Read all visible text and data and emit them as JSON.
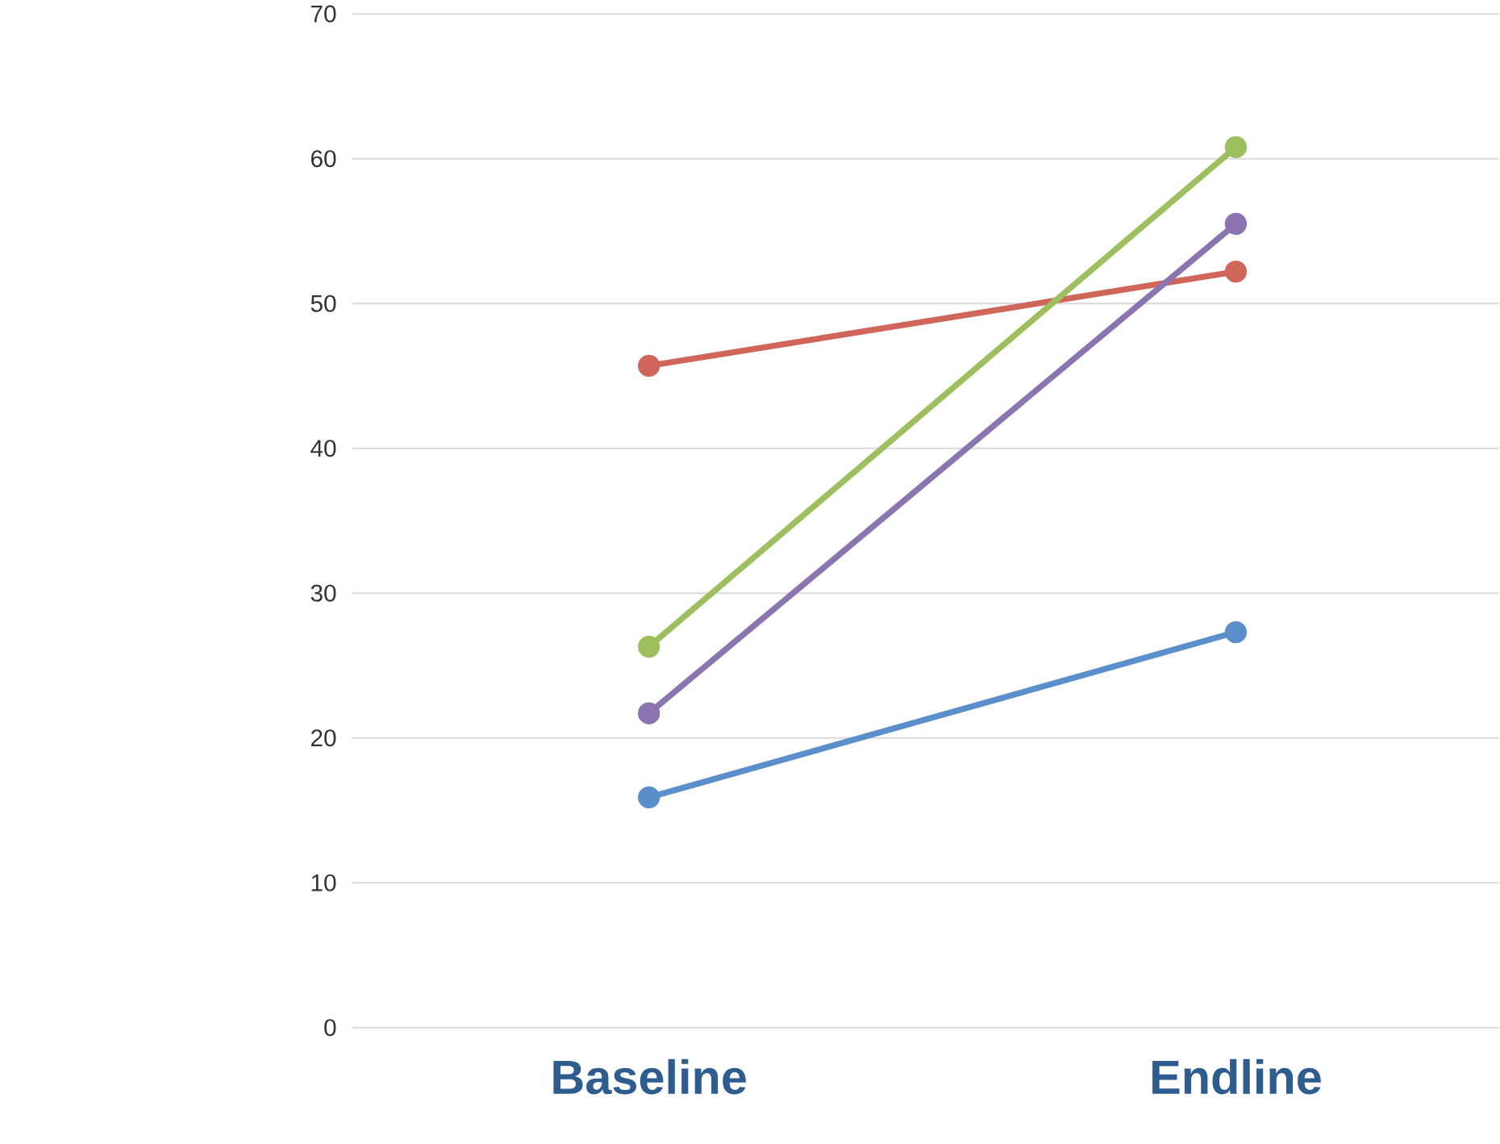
{
  "chart_data": {
    "type": "line",
    "categories": [
      "Baseline",
      "Endline"
    ],
    "series": [
      {
        "color": "#d0665a",
        "values": [
          45.7,
          52.2
        ]
      },
      {
        "color": "#9dbf5e",
        "values": [
          26.3,
          60.8
        ]
      },
      {
        "color": "#8c74b0",
        "values": [
          21.7,
          55.5
        ]
      },
      {
        "color": "#5b8fcb",
        "values": [
          15.9,
          27.3
        ]
      }
    ],
    "ylim": [
      0,
      70
    ],
    "yticks": [
      0,
      10,
      20,
      30,
      40,
      50,
      60,
      70
    ],
    "grid": "y",
    "marker": "circle"
  }
}
